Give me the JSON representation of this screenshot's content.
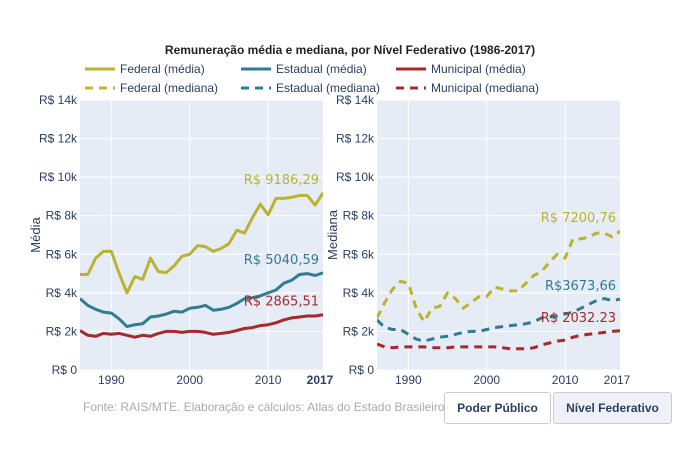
{
  "chart_data": {
    "type": "line",
    "title": "Remuneração média e mediana, por Nível Federativo (1986-2017)",
    "source": "Fonte: RAIS/MTE. Elaboração e cálculos: Atlas do Estado Brasileiro",
    "x": [
      1986,
      1987,
      1988,
      1989,
      1990,
      1991,
      1992,
      1993,
      1994,
      1995,
      1996,
      1997,
      1998,
      1999,
      2000,
      2001,
      2002,
      2003,
      2004,
      2005,
      2006,
      2007,
      2008,
      2009,
      2010,
      2011,
      2012,
      2013,
      2014,
      2015,
      2016,
      2017
    ],
    "xlim": [
      1986,
      2017
    ],
    "xticks": [
      "1990",
      "2000",
      "2010",
      "2017"
    ],
    "ylim": [
      0,
      14000
    ],
    "yticks": [
      "R$ 0",
      "R$ 2k",
      "R$ 4k",
      "R$ 6k",
      "R$ 8k",
      "R$ 10k",
      "R$ 12k",
      "R$ 14k"
    ],
    "grid": true,
    "legend_position": "top",
    "legend": [
      {
        "label": "Federal (média)",
        "color": "#bcb232",
        "dash": "solid"
      },
      {
        "label": "Estadual (média)",
        "color": "#2e7d90",
        "dash": "solid"
      },
      {
        "label": "Municipal (média)",
        "color": "#a52a2a",
        "dash": "solid"
      },
      {
        "label": "Federal (mediana)",
        "color": "#bcb232",
        "dash": "dash"
      },
      {
        "label": "Estadual (mediana)",
        "color": "#2e7d90",
        "dash": "dash"
      },
      {
        "label": "Municipal (mediana)",
        "color": "#a52a2a",
        "dash": "dash"
      }
    ],
    "panels": [
      {
        "ylabel": "Média",
        "series": [
          {
            "name": "Federal (média)",
            "color": "#bcb232",
            "dash": "solid",
            "values": [
              4950,
              4950,
              5800,
              6150,
              6150,
              5000,
              4000,
              4850,
              4700,
              5800,
              5100,
              5050,
              5400,
              5900,
              6000,
              6450,
              6400,
              6150,
              6300,
              6550,
              7250,
              7100,
              7900,
              8600,
              8050,
              8900,
              8900,
              8950,
              9050,
              9050,
              8550,
              9186.29
            ]
          },
          {
            "name": "Estadual (média)",
            "color": "#2e7d90",
            "dash": "solid",
            "values": [
              3700,
              3350,
              3150,
              3000,
              2950,
              2650,
              2250,
              2350,
              2400,
              2750,
              2800,
              2900,
              3050,
              3000,
              3200,
              3250,
              3350,
              3100,
              3150,
              3250,
              3450,
              3700,
              3750,
              3850,
              4000,
              4150,
              4500,
              4650,
              4950,
              5000,
              4900,
              5040.59
            ]
          },
          {
            "name": "Municipal (média)",
            "color": "#a52a2a",
            "dash": "solid",
            "values": [
              2050,
              1800,
              1750,
              1900,
              1850,
              1900,
              1800,
              1700,
              1800,
              1750,
              1900,
              2000,
              2000,
              1950,
              2000,
              2000,
              1950,
              1850,
              1900,
              1950,
              2050,
              2150,
              2200,
              2300,
              2350,
              2450,
              2600,
              2700,
              2750,
              2800,
              2800,
              2865.51
            ]
          }
        ],
        "annotations": [
          {
            "text": "R$ 9186,29",
            "color": "#bcb232",
            "year": 2017,
            "value": 9186.29
          },
          {
            "text": "R$ 5040,59",
            "color": "#2e7d90",
            "year": 2017,
            "value": 5040.59
          },
          {
            "text": "R$ 2865,51",
            "color": "#a52a2a",
            "year": 2017,
            "value": 2865.51
          }
        ]
      },
      {
        "ylabel": "Mediana",
        "series": [
          {
            "name": "Federal (mediana)",
            "color": "#bcb232",
            "dash": "dash",
            "values": [
              2700,
              3500,
              4200,
              4600,
              4500,
              3200,
              2500,
              3200,
              3300,
              4000,
              3700,
              3200,
              3500,
              3800,
              3800,
              4300,
              4200,
              4100,
              4100,
              4500,
              4900,
              5100,
              5600,
              6000,
              5800,
              6800,
              6800,
              6900,
              7100,
              7100,
              6900,
              7200.76
            ]
          },
          {
            "name": "Estadual (mediana)",
            "color": "#2e7d90",
            "dash": "dash",
            "values": [
              2600,
              2200,
              2100,
              2100,
              1850,
              1600,
              1500,
              1600,
              1700,
              1750,
              1850,
              1950,
              2000,
              2000,
              2100,
              2200,
              2250,
              2300,
              2350,
              2400,
              2500,
              2700,
              2750,
              2800,
              2900,
              3000,
              3200,
              3400,
              3600,
              3700,
              3600,
              3673.66
            ]
          },
          {
            "name": "Municipal (mediana)",
            "color": "#a52a2a",
            "dash": "dash",
            "values": [
              1350,
              1200,
              1150,
              1200,
              1200,
              1200,
              1200,
              1150,
              1150,
              1150,
              1200,
              1200,
              1200,
              1200,
              1200,
              1200,
              1150,
              1100,
              1100,
              1100,
              1150,
              1300,
              1400,
              1500,
              1550,
              1700,
              1800,
              1850,
              1900,
              1950,
              2000,
              2032.23
            ]
          }
        ],
        "annotations": [
          {
            "text": "R$ 7200,76",
            "color": "#bcb232",
            "year": 2017,
            "value": 7200.76
          },
          {
            "text": "R$3673,66",
            "color": "#2e7d90",
            "year": 2017,
            "value": 3673.66
          },
          {
            "text": "R$ 2032.23",
            "color": "#a52a2a",
            "year": 2017,
            "value": 2032.23
          }
        ]
      }
    ]
  },
  "buttons": {
    "poder_publico": "Poder Público",
    "nivel_federativo": "Nível Federativo"
  }
}
